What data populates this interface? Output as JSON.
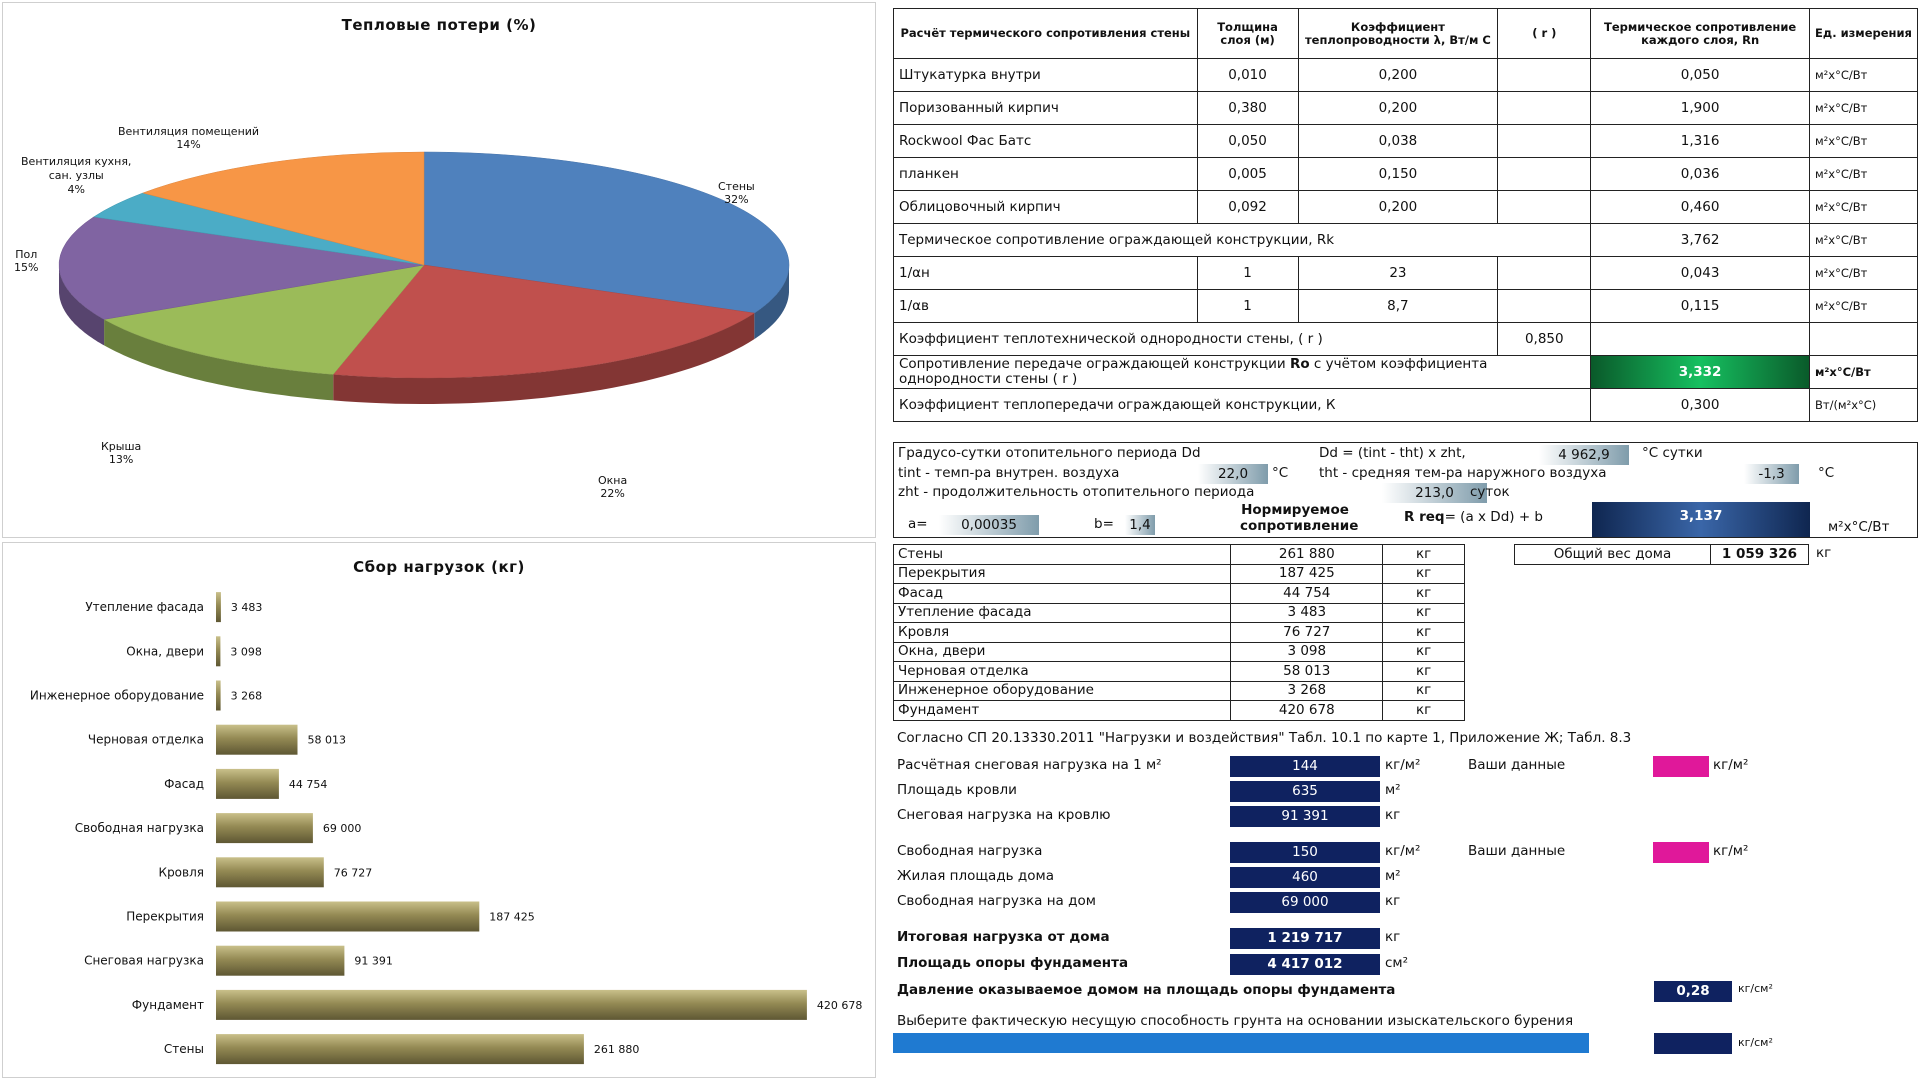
{
  "pie_chart": {
    "title": "Тепловые потери (%)",
    "labels": [
      {
        "name": "Стены",
        "pct": "32%"
      },
      {
        "name": "Окна",
        "pct": "22%"
      },
      {
        "name": "Крыша",
        "pct": "13%"
      },
      {
        "name": "Пол",
        "pct": "15%"
      },
      {
        "name": "Вентиляция кухня,",
        "name2": "сан. узлы",
        "pct": "4%"
      },
      {
        "name": "Вентиляция помещений",
        "pct": "14%"
      }
    ]
  },
  "bar_chart": {
    "title": "Сбор нагрузок (кг)"
  },
  "chart_data": [
    {
      "type": "pie",
      "title": "Тепловые потери (%)",
      "categories": [
        "Стены",
        "Окна",
        "Крыша",
        "Пол",
        "Вентиляция кухня, сан. узлы",
        "Вентиляция помещений"
      ],
      "values": [
        32,
        22,
        13,
        15,
        4,
        14
      ],
      "colors": [
        "#4f81bd",
        "#c0504d",
        "#9bbb59",
        "#8064a2",
        "#4bacc6",
        "#f79646"
      ]
    },
    {
      "type": "bar",
      "orientation": "horizontal",
      "title": "Сбор нагрузок (кг)",
      "categories": [
        "Утепление фасада",
        "Окна, двери",
        "Инженерное оборудование",
        "Черновая отделка",
        "Фасад",
        "Свободная нагрузка",
        "Кровля",
        "Перекрытия",
        "Снеговая нагрузка",
        "Фундамент",
        "Стены"
      ],
      "values": [
        3483,
        3098,
        3268,
        58013,
        44754,
        69000,
        76727,
        187425,
        91391,
        420678,
        261880
      ],
      "value_labels": [
        "3 483",
        "3 098",
        "3 268",
        "58 013",
        "44 754",
        "69 000",
        "76 727",
        "187 425",
        "91 391",
        "420 678",
        "261 880"
      ],
      "xlim": [
        0,
        430000
      ],
      "bar_color": "#948a54"
    }
  ],
  "thermal_table": {
    "headers": [
      "Расчёт термического сопротивления стены",
      "Толщина слоя (м)",
      "Коэффициент теплопроводности λ, Вт/м С",
      "( r )",
      "Термическое сопротивление каждого слоя, Rn",
      "Ед. измерения"
    ],
    "layers": [
      {
        "name": "Штукатурка внутри",
        "thickness": "0,010",
        "lambda": "0,200",
        "r": "",
        "rn": "0,050",
        "unit": "м²х°С/Вт"
      },
      {
        "name": "Поризованный кирпич",
        "thickness": "0,380",
        "lambda": "0,200",
        "r": "",
        "rn": "1,900",
        "unit": "м²х°С/Вт"
      },
      {
        "name": "Rockwool Фас Батс",
        "thickness": "0,050",
        "lambda": "0,038",
        "r": "",
        "rn": "1,316",
        "unit": "м²х°С/Вт"
      },
      {
        "name": "планкен",
        "thickness": "0,005",
        "lambda": "0,150",
        "r": "",
        "rn": "0,036",
        "unit": "м²х°С/Вт"
      },
      {
        "name": "Облицовочный кирпич",
        "thickness": "0,092",
        "lambda": "0,200",
        "r": "",
        "rn": "0,460",
        "unit": "м²х°С/Вт"
      }
    ],
    "rk": {
      "label": "Термическое сопротивление ограждающей конструкции, Rk",
      "value": "3,762",
      "unit": "м²х°С/Вт"
    },
    "an": {
      "label": "1/αн",
      "a": "1",
      "b": "23",
      "value": "0,043",
      "unit": "м²х°С/Вт"
    },
    "av": {
      "label": "1/αв",
      "a": "1",
      "b": "8,7",
      "value": "0,115",
      "unit": "м²х°С/Вт"
    },
    "uniformity": {
      "label": "Коэффициент теплотехнической однородности стены, ( r )",
      "value": "0,850"
    },
    "ro": {
      "label_pre": "Сопротивление передаче ограждающей конструкции ",
      "label_bold": "Ro",
      "label_post": " с учётом коэффициента однородности стены ( r )",
      "value": "3,332",
      "unit": "м²х°С/Вт"
    },
    "k": {
      "label": "Коэффициент теплопередачи ограждающей конструкции, К",
      "value": "0,300",
      "unit": "Вт/(м²х°С)"
    }
  },
  "degree_days": {
    "dd_label": "Градусо-сутки отопительного периода Dd",
    "dd_formula": "Dd = (tint - tht) x zht,",
    "dd_value": "4 962,9",
    "dd_unit": "°С сутки",
    "tint_label": "tint - темп-ра внутрен. воздуха",
    "tint_value": "22,0",
    "tint_unit": "°С",
    "tht_label": "tht - средняя тем-ра наружного воздуха",
    "tht_value": "-1,3",
    "tht_unit": "°С",
    "zht_label": "zht - продолжительность отопительного периода",
    "zht_value": "213,0",
    "zht_unit": "суток",
    "a_label": "a=",
    "a_value": "0,00035",
    "b_label": "b=",
    "b_value": "1,4",
    "norm_label": "Нормируемое сопротивление",
    "rreq_bold": "R req",
    "rreq_formula": " = (a x Dd) + b",
    "rreq_value": "3,137",
    "rreq_unit": "м²х°С/Вт"
  },
  "loads_table": {
    "rows": [
      {
        "name": "Стены",
        "value": "261 880",
        "unit": "кг"
      },
      {
        "name": "Перекрытия",
        "value": "187 425",
        "unit": "кг"
      },
      {
        "name": "Фасад",
        "value": "44 754",
        "unit": "кг"
      },
      {
        "name": "Утепление фасада",
        "value": "3 483",
        "unit": "кг"
      },
      {
        "name": "Кровля",
        "value": "76 727",
        "unit": "кг"
      },
      {
        "name": "Окна, двери",
        "value": "3 098",
        "unit": "кг"
      },
      {
        "name": "Черновая отделка",
        "value": "58 013",
        "unit": "кг"
      },
      {
        "name": "Инженерное оборудование",
        "value": "3 268",
        "unit": "кг"
      },
      {
        "name": "Фундамент",
        "value": "420 678",
        "unit": "кг"
      }
    ],
    "total_label": "Общий вес дома",
    "total_value": "1 059 326",
    "total_unit": "кг"
  },
  "snow": {
    "reference": "Согласно СП 20.13330.2011 \"Нагрузки и воздействия\"  Табл. 10.1 по карте 1, Приложение Ж; Табл. 8.3",
    "snow_load_label": "Расчётная снеговая нагрузка на 1 м²",
    "snow_load_value": "144",
    "snow_load_unit": "кг/м²",
    "your_data_label": "Ваши данные",
    "your_data_unit": "кг/м²",
    "roof_area_label": "Площадь кровли",
    "roof_area_value": "635",
    "roof_area_unit": "м²",
    "roof_snow_label": "Снеговая нагрузка на кровлю",
    "roof_snow_value": "91 391",
    "roof_snow_unit": "кг",
    "free_load_label": "Свободная нагрузка",
    "free_load_value": "150",
    "free_load_unit": "кг/м²",
    "your_data2_label": "Ваши данные",
    "your_data2_unit": "кг/м²",
    "living_area_label": "Жилая площадь дома",
    "living_area_value": "460",
    "living_area_unit": "м²",
    "free_house_label": "Свободная нагрузка на дом",
    "free_house_value": "69 000",
    "free_house_unit": "кг",
    "total_load_label": "Итоговая нагрузка от дома",
    "total_load_value": "1 219 717",
    "total_load_unit": "кг",
    "support_area_label": "Площадь опоры фундамента",
    "support_area_value": "4 417 012",
    "support_area_unit": "см²",
    "pressure_label": "Давление оказываемое домом на площадь опоры фундамента",
    "pressure_value": "0,28",
    "pressure_unit": "кг/см²",
    "soil_label": "Выберите фактическую несущую способность грунта на основании изыскательского бурения",
    "soil_unit": "кг/см²"
  }
}
